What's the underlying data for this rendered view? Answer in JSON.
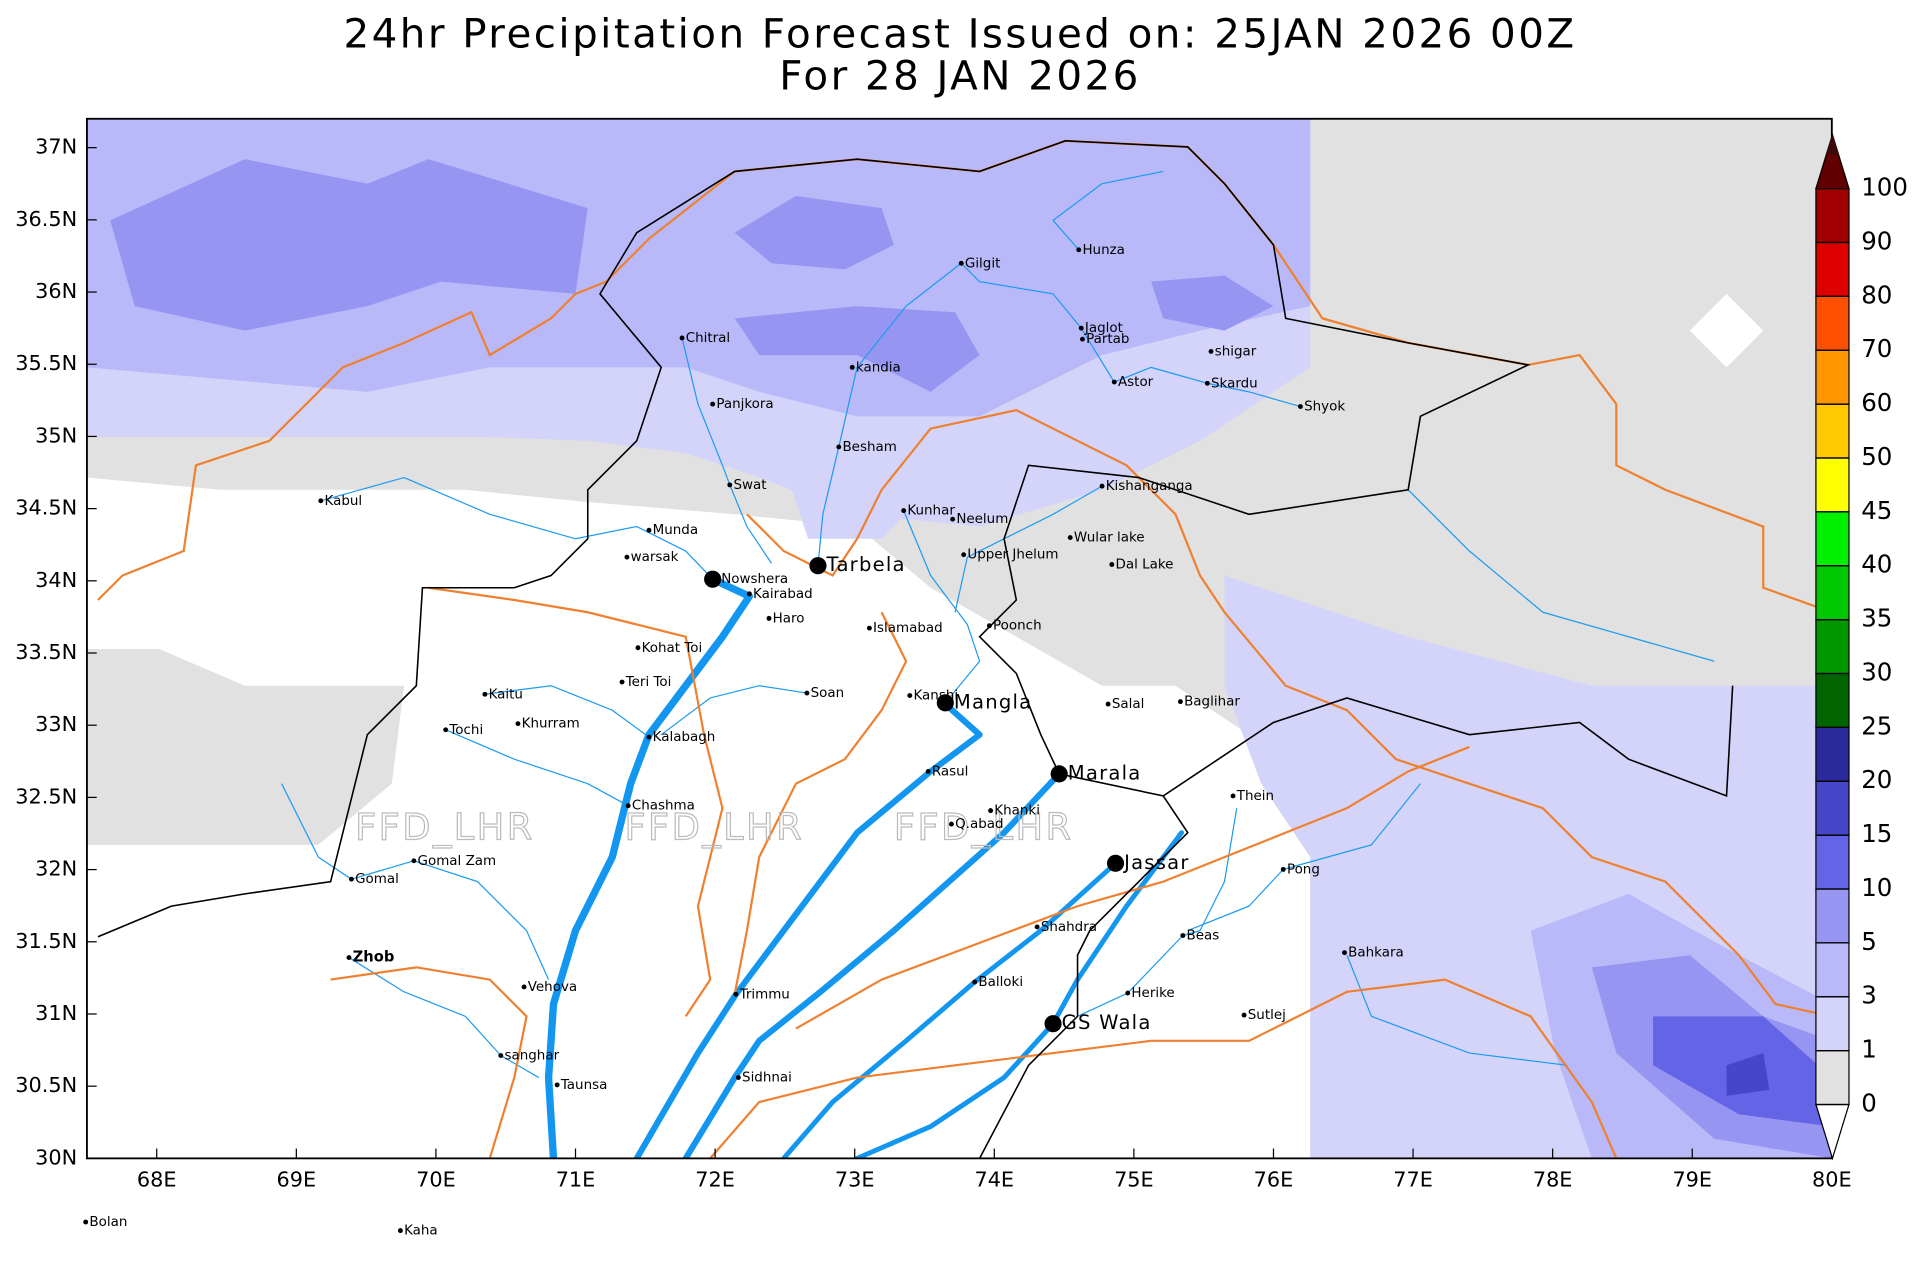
{
  "title": [
    "24hr Precipitation Forecast Issued on:  25JAN 2026 00Z",
    "For 28 JAN 2026"
  ],
  "map": {
    "xlim": [
      67.5,
      80
    ],
    "ylim": [
      30,
      37.2
    ],
    "xticks": [
      {
        "value": 68,
        "label": "68E"
      },
      {
        "value": 69,
        "label": "69E"
      },
      {
        "value": 70,
        "label": "70E"
      },
      {
        "value": 71,
        "label": "71E"
      },
      {
        "value": 72,
        "label": "72E"
      },
      {
        "value": 73,
        "label": "73E"
      },
      {
        "value": 74,
        "label": "74E"
      },
      {
        "value": 75,
        "label": "75E"
      },
      {
        "value": 76,
        "label": "76E"
      },
      {
        "value": 77,
        "label": "77E"
      },
      {
        "value": 78,
        "label": "78E"
      },
      {
        "value": 79,
        "label": "79E"
      },
      {
        "value": 80,
        "label": "80E"
      }
    ],
    "yticks": [
      {
        "value": 30,
        "label": "30N"
      },
      {
        "value": 30.5,
        "label": "30.5N"
      },
      {
        "value": 31,
        "label": "31N"
      },
      {
        "value": 31.5,
        "label": "31.5N"
      },
      {
        "value": 32,
        "label": "32N"
      },
      {
        "value": 32.5,
        "label": "32.5N"
      },
      {
        "value": 33,
        "label": "33N"
      },
      {
        "value": 33.5,
        "label": "33.5N"
      },
      {
        "value": 34,
        "label": "34N"
      },
      {
        "value": 34.5,
        "label": "34.5N"
      },
      {
        "value": 35,
        "label": "35N"
      },
      {
        "value": 35.5,
        "label": "35.5N"
      },
      {
        "value": 36,
        "label": "36N"
      },
      {
        "value": 36.5,
        "label": "36.5N"
      },
      {
        "value": 37,
        "label": "37N"
      }
    ]
  },
  "colorbar": {
    "levels": [
      0,
      1,
      3,
      5,
      10,
      15,
      20,
      25,
      30,
      35,
      40,
      45,
      50,
      60,
      70,
      80,
      90,
      100
    ],
    "colors": [
      "#ffffff",
      "#e1e1e1",
      "#d4d4fa",
      "#b9b9fa",
      "#9696f2",
      "#6464e6",
      "#4646c8",
      "#2a2a9c",
      "#006400",
      "#009600",
      "#00c800",
      "#00f000",
      "#ffff00",
      "#ffc800",
      "#ff9600",
      "#ff5000",
      "#dc0000",
      "#a00000",
      "#600000",
      "#3c0a0a"
    ]
  },
  "places": [
    "Kabul",
    "Chitral",
    "Gilgit",
    "Hunza",
    "Jaglot",
    "Partab",
    "kandia",
    "shigar",
    "Astor",
    "Skardu",
    "Shyok",
    "Panjkora",
    "Besham",
    "Swat",
    "Kishanganga",
    "Kunhar",
    "Neelum",
    "Munda",
    "Wular lake",
    "warsak",
    "Upper Jhelum",
    "Dal Lake",
    "Nowshera",
    "Tarbela",
    "Kairabad",
    "Haro",
    "Islamabad",
    "Poonch",
    "Kohat Toi",
    "Teri Toi",
    "Soan",
    "Kanshi",
    "Mangla",
    "Kaitu",
    "Salal",
    "Baglihar",
    "Khurram",
    "Tochi",
    "Kalabagh",
    "Rasul",
    "Marala",
    "Thein",
    "Chashma",
    "Khanki",
    "Q.abad",
    "Gomal Zam",
    "Pong",
    "Jassar",
    "Gomal",
    "Shahdra",
    "Beas",
    "Bahkara",
    "Zhob",
    "Vehova",
    "Balloki",
    "Trimmu",
    "Herike",
    "Sutlej",
    "GS Wala",
    "sanghar",
    "Sidhnai",
    "Taunsa",
    "Bolan",
    "Kaha"
  ],
  "watermark": [
    "FFD_LHR",
    "FFD_LHR",
    "FFD_LHR"
  ]
}
